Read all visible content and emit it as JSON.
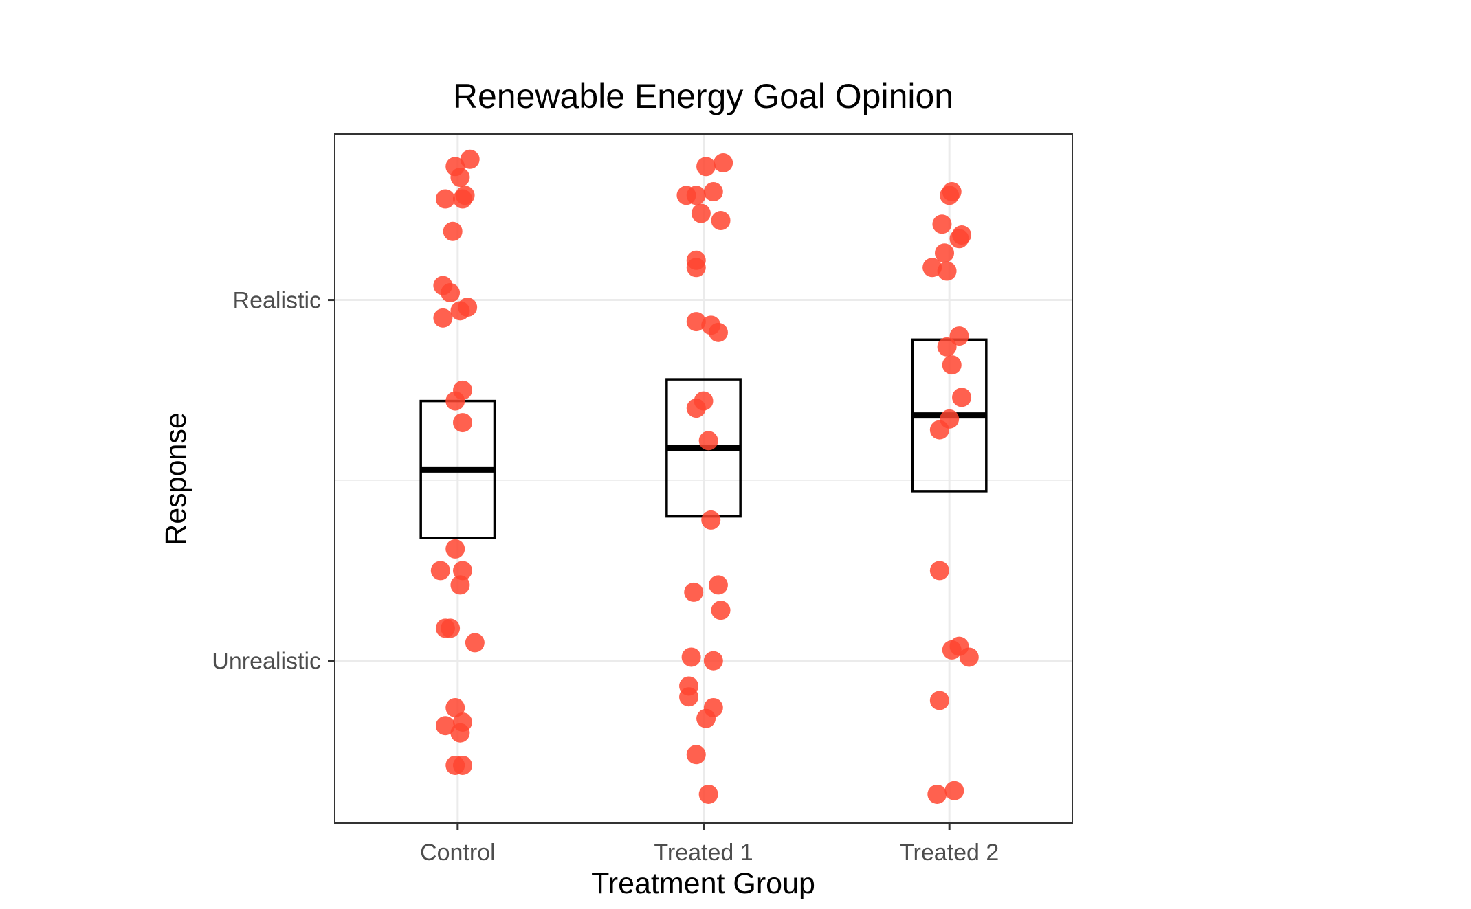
{
  "chart_data": {
    "type": "scatter",
    "title": "Renewable Energy Goal Opinion",
    "xlabel": "Treatment Group",
    "ylabel": "Response",
    "categories": [
      "Control",
      "Treated 1",
      "Treated 2"
    ],
    "y_ticks": [
      {
        "label": "Unrealistic",
        "value": 0
      },
      {
        "label": "Realistic",
        "value": 1
      }
    ],
    "ylim": [
      -0.45,
      1.46
    ],
    "grid": true,
    "point_color": "#FF4530",
    "box_color": "#000000",
    "boxes": [
      {
        "group": "Control",
        "lower": 0.34,
        "middle": 0.53,
        "upper": 0.72
      },
      {
        "group": "Treated 1",
        "lower": 0.4,
        "middle": 0.59,
        "upper": 0.78
      },
      {
        "group": "Treated 2",
        "lower": 0.47,
        "middle": 0.68,
        "upper": 0.89
      }
    ],
    "series": [
      {
        "group": "Control",
        "points": [
          [
            0.05,
            1.39
          ],
          [
            -0.01,
            1.37
          ],
          [
            0.01,
            1.34
          ],
          [
            0.03,
            1.29
          ],
          [
            -0.05,
            1.28
          ],
          [
            0.02,
            1.28
          ],
          [
            -0.02,
            1.19
          ],
          [
            -0.06,
            1.04
          ],
          [
            -0.03,
            1.02
          ],
          [
            0.04,
            0.98
          ],
          [
            0.01,
            0.97
          ],
          [
            -0.06,
            0.95
          ],
          [
            0.02,
            0.75
          ],
          [
            -0.01,
            0.72
          ],
          [
            0.02,
            0.66
          ],
          [
            -0.01,
            0.31
          ],
          [
            -0.07,
            0.25
          ],
          [
            0.02,
            0.25
          ],
          [
            0.01,
            0.21
          ],
          [
            -0.05,
            0.09
          ],
          [
            -0.03,
            0.09
          ],
          [
            0.07,
            0.05
          ],
          [
            -0.01,
            -0.13
          ],
          [
            0.02,
            -0.17
          ],
          [
            -0.05,
            -0.18
          ],
          [
            0.01,
            -0.2
          ],
          [
            -0.01,
            -0.29
          ],
          [
            0.02,
            -0.29
          ]
        ]
      },
      {
        "group": "Treated 1",
        "points": [
          [
            0.01,
            1.37
          ],
          [
            0.08,
            1.38
          ],
          [
            -0.07,
            1.29
          ],
          [
            -0.03,
            1.29
          ],
          [
            0.04,
            1.3
          ],
          [
            -0.01,
            1.24
          ],
          [
            0.07,
            1.22
          ],
          [
            -0.03,
            1.11
          ],
          [
            -0.03,
            1.09
          ],
          [
            -0.03,
            0.94
          ],
          [
            0.03,
            0.93
          ],
          [
            0.06,
            0.91
          ],
          [
            0.0,
            0.72
          ],
          [
            -0.03,
            0.7
          ],
          [
            0.02,
            0.61
          ],
          [
            0.03,
            0.39
          ],
          [
            0.06,
            0.21
          ],
          [
            -0.04,
            0.19
          ],
          [
            0.07,
            0.14
          ],
          [
            -0.05,
            0.01
          ],
          [
            0.04,
            0.0
          ],
          [
            -0.06,
            -0.07
          ],
          [
            -0.06,
            -0.1
          ],
          [
            0.04,
            -0.13
          ],
          [
            0.01,
            -0.16
          ],
          [
            -0.03,
            -0.26
          ],
          [
            0.02,
            -0.37
          ]
        ]
      },
      {
        "group": "Treated 2",
        "points": [
          [
            0.0,
            1.29
          ],
          [
            0.01,
            1.3
          ],
          [
            -0.03,
            1.21
          ],
          [
            0.05,
            1.18
          ],
          [
            0.04,
            1.17
          ],
          [
            -0.02,
            1.13
          ],
          [
            -0.07,
            1.09
          ],
          [
            -0.01,
            1.08
          ],
          [
            0.04,
            0.9
          ],
          [
            -0.01,
            0.87
          ],
          [
            0.01,
            0.82
          ],
          [
            0.05,
            0.73
          ],
          [
            0.0,
            0.67
          ],
          [
            -0.04,
            0.64
          ],
          [
            -0.04,
            0.25
          ],
          [
            0.01,
            0.03
          ],
          [
            0.04,
            0.04
          ],
          [
            0.08,
            0.01
          ],
          [
            -0.04,
            -0.11
          ],
          [
            -0.05,
            -0.37
          ],
          [
            0.02,
            -0.36
          ]
        ]
      }
    ]
  }
}
